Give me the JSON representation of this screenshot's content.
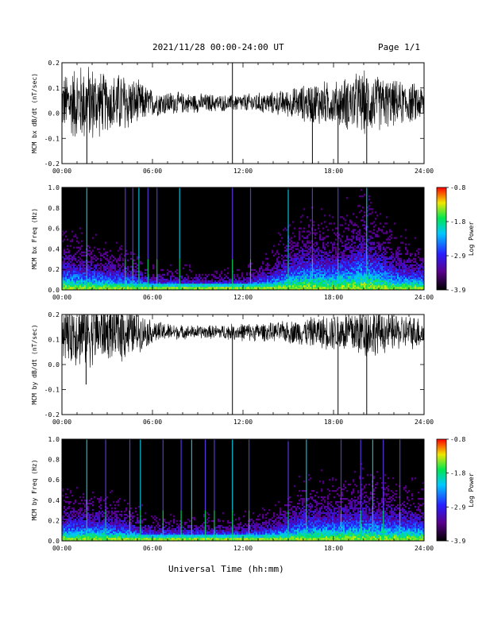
{
  "header": {
    "title": "2021/11/28  00:00-24:00 UT",
    "page": "Page 1/1"
  },
  "xlabel": "Universal Time (hh:mm)",
  "chart_data": [
    {
      "type": "line",
      "ylabel": "MCM bx dB/dt (nT/sec)",
      "xlim": [
        0,
        24
      ],
      "ylim": [
        -0.2,
        0.2
      ],
      "xticks": [
        "00:00",
        "06:00",
        "12:00",
        "18:00",
        "24:00"
      ],
      "yticks": [
        "0.2",
        "0.1",
        "0.0",
        "-0.1",
        "-0.2"
      ],
      "mean": 0.04,
      "amplitude_envelope": [
        [
          0,
          0.12
        ],
        [
          1,
          0.17
        ],
        [
          2,
          0.17
        ],
        [
          3,
          0.12
        ],
        [
          4,
          0.14
        ],
        [
          5,
          0.1
        ],
        [
          6,
          0.06
        ],
        [
          8,
          0.045
        ],
        [
          10,
          0.04
        ],
        [
          11,
          0.035
        ],
        [
          12,
          0.04
        ],
        [
          14,
          0.05
        ],
        [
          15,
          0.06
        ],
        [
          16,
          0.08
        ],
        [
          17,
          0.1
        ],
        [
          18,
          0.09
        ],
        [
          19,
          0.12
        ],
        [
          20,
          0.14
        ],
        [
          21,
          0.12
        ],
        [
          22,
          0.1
        ],
        [
          24,
          0.08
        ]
      ],
      "spikes": [
        [
          1.65,
          -0.2
        ],
        [
          11.3,
          0.2
        ],
        [
          11.3,
          -0.2
        ],
        [
          16.6,
          -0.2
        ],
        [
          18.3,
          -0.2
        ],
        [
          20.2,
          -0.2
        ]
      ]
    },
    {
      "type": "heatmap",
      "ylabel": "MCM bx Freq (Hz)",
      "colorbar_label": "Log Power",
      "colorbar_ticks": [
        "-0.8",
        "-1.8",
        "-2.9",
        "-3.9"
      ],
      "xlim": [
        0,
        24
      ],
      "ylim": [
        0,
        1.0
      ],
      "xticks": [
        "00:00",
        "06:00",
        "12:00",
        "18:00",
        "24:00"
      ],
      "yticks": [
        "1.0",
        "0.8",
        "0.6",
        "0.4",
        "0.2",
        "0.0"
      ],
      "activity": [
        [
          0,
          0.35
        ],
        [
          2,
          0.3
        ],
        [
          4,
          0.25
        ],
        [
          6,
          0.15
        ],
        [
          9,
          0.12
        ],
        [
          12,
          0.12
        ],
        [
          14,
          0.25
        ],
        [
          16,
          0.45
        ],
        [
          18,
          0.4
        ],
        [
          20,
          0.55
        ],
        [
          22,
          0.35
        ],
        [
          24,
          0.25
        ]
      ],
      "vertical_streaks": [
        1.65,
        4.2,
        4.7,
        5.1,
        5.7,
        6.3,
        7.8,
        11.3,
        12.5,
        15.0,
        16.6,
        18.3,
        20.2
      ]
    },
    {
      "type": "line",
      "ylabel": "MCM by dB/dt (nT/sec)",
      "xlim": [
        0,
        24
      ],
      "ylim": [
        -0.2,
        0.2
      ],
      "xticks": [
        "00:00",
        "06:00",
        "12:00",
        "18:00",
        "24:00"
      ],
      "yticks": [
        "0.2",
        "0.1",
        "0.0",
        "-0.1",
        "-0.2"
      ],
      "mean": 0.13,
      "amplitude_envelope": [
        [
          0,
          0.12
        ],
        [
          1,
          0.15
        ],
        [
          2,
          0.15
        ],
        [
          3,
          0.12
        ],
        [
          4,
          0.13
        ],
        [
          5,
          0.09
        ],
        [
          6,
          0.05
        ],
        [
          8,
          0.03
        ],
        [
          10,
          0.03
        ],
        [
          12,
          0.04
        ],
        [
          14,
          0.04
        ],
        [
          15,
          0.05
        ],
        [
          16,
          0.06
        ],
        [
          17,
          0.07
        ],
        [
          18,
          0.08
        ],
        [
          19,
          0.1
        ],
        [
          20,
          0.12
        ],
        [
          21,
          0.1
        ],
        [
          22,
          0.08
        ],
        [
          24,
          0.07
        ]
      ],
      "spikes": [
        [
          1.6,
          -0.08
        ],
        [
          11.3,
          -0.2
        ],
        [
          18.3,
          -0.2
        ],
        [
          20.2,
          -0.2
        ]
      ]
    },
    {
      "type": "heatmap",
      "ylabel": "MCM by Freq (Hz)",
      "colorbar_label": "Log Power",
      "colorbar_ticks": [
        "-0.8",
        "-1.8",
        "-2.9",
        "-3.9"
      ],
      "xlim": [
        0,
        24
      ],
      "ylim": [
        0,
        1.0
      ],
      "xticks": [
        "00:00",
        "06:00",
        "12:00",
        "18:00",
        "24:00"
      ],
      "yticks": [
        "1.0",
        "0.8",
        "0.6",
        "0.4",
        "0.2",
        "0.0"
      ],
      "activity": [
        [
          0,
          0.3
        ],
        [
          2,
          0.3
        ],
        [
          4,
          0.25
        ],
        [
          6,
          0.15
        ],
        [
          9,
          0.15
        ],
        [
          12,
          0.15
        ],
        [
          14,
          0.2
        ],
        [
          16,
          0.35
        ],
        [
          18,
          0.35
        ],
        [
          20,
          0.4
        ],
        [
          22,
          0.35
        ],
        [
          24,
          0.3
        ]
      ],
      "vertical_streaks": [
        1.65,
        2.9,
        4.5,
        5.2,
        6.7,
        7.9,
        8.6,
        9.5,
        10.1,
        11.3,
        12.4,
        15.0,
        16.2,
        18.5,
        19.8,
        20.6,
        21.3,
        22.4
      ]
    }
  ]
}
